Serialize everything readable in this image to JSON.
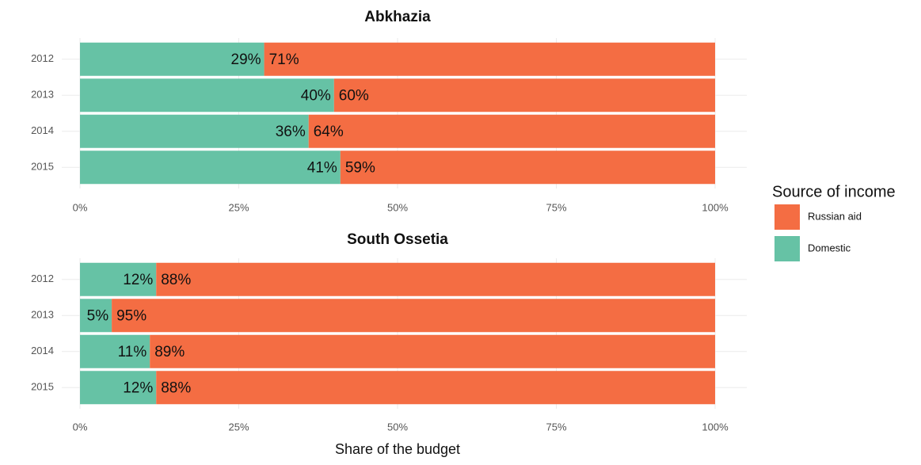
{
  "chart_data": [
    {
      "type": "bar",
      "orientation": "horizontal",
      "stacked": true,
      "title": "Abkhazia",
      "categories": [
        "2012",
        "2013",
        "2014",
        "2015"
      ],
      "series": [
        {
          "name": "Russian aid",
          "color": "#f46d43",
          "values": [
            71,
            60,
            64,
            59
          ],
          "value_labels": [
            "71%",
            "60%",
            "64%",
            "59%"
          ]
        },
        {
          "name": "Domestic",
          "color": "#66c2a5",
          "values": [
            29,
            40,
            36,
            41
          ],
          "value_labels": [
            "29%",
            "40%",
            "36%",
            "41%"
          ]
        }
      ],
      "xlim": [
        0,
        100
      ],
      "xticks": [
        {
          "value": 0,
          "label": "0%"
        },
        {
          "value": 25,
          "label": "25%"
        },
        {
          "value": 50,
          "label": "50%"
        },
        {
          "value": 75,
          "label": "75%"
        },
        {
          "value": 100,
          "label": "100%"
        }
      ],
      "grid": true,
      "legend_title": "Source of income",
      "legend": "right"
    },
    {
      "type": "bar",
      "orientation": "horizontal",
      "stacked": true,
      "title": "South Ossetia",
      "categories": [
        "2012",
        "2013",
        "2014",
        "2015"
      ],
      "series": [
        {
          "name": "Russian aid",
          "color": "#f46d43",
          "values": [
            88,
            95,
            89,
            88
          ],
          "value_labels": [
            "88%",
            "95%",
            "89%",
            "88%"
          ]
        },
        {
          "name": "Domestic",
          "color": "#66c2a5",
          "values": [
            12,
            5,
            11,
            12
          ],
          "value_labels": [
            "12%",
            "5%",
            "11%",
            "12%"
          ]
        }
      ],
      "xlim": [
        0,
        100
      ],
      "xticks": [
        {
          "value": 0,
          "label": "0%"
        },
        {
          "value": 25,
          "label": "25%"
        },
        {
          "value": 50,
          "label": "50%"
        },
        {
          "value": 75,
          "label": "75%"
        },
        {
          "value": 100,
          "label": "100%"
        }
      ],
      "grid": true,
      "xlabel": "Share of the budget"
    }
  ]
}
